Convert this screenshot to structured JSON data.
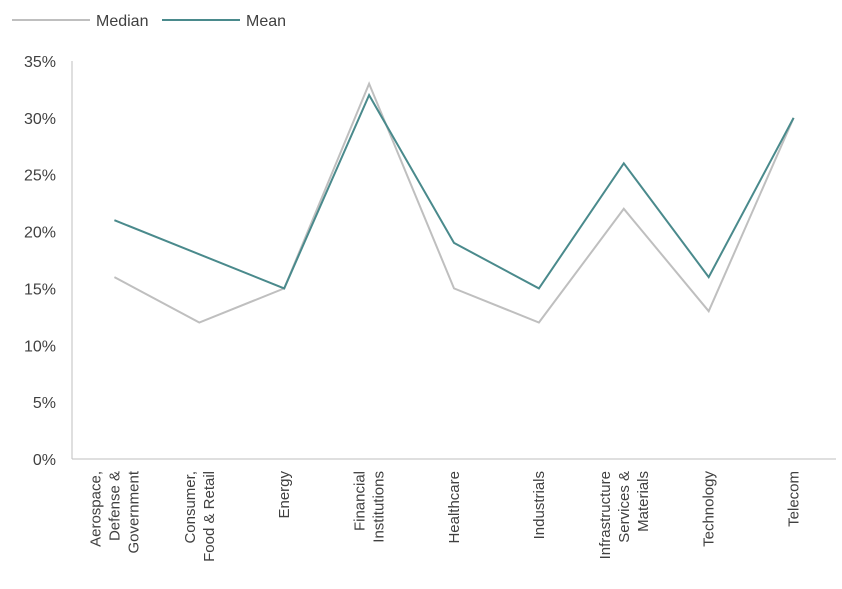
{
  "chart_data": {
    "type": "line",
    "categories": [
      [
        "Aerospace,",
        "Defense &",
        "Government"
      ],
      [
        "Consumer,",
        "Food & Retail"
      ],
      [
        "Energy"
      ],
      [
        "Financial",
        "Institutions"
      ],
      [
        "Healthcare"
      ],
      [
        "Industrials"
      ],
      [
        "Infrastructure",
        "Services &",
        "Materials"
      ],
      [
        "Technology"
      ],
      [
        "Telecom"
      ]
    ],
    "series": [
      {
        "name": "Median",
        "color": "#BFBFBF",
        "values": [
          16,
          12,
          15,
          33,
          15,
          12,
          22,
          13,
          30
        ]
      },
      {
        "name": "Mean",
        "color": "#4A8A8C",
        "values": [
          21,
          18,
          15,
          32,
          19,
          15,
          26,
          16,
          30
        ]
      }
    ],
    "ylim": [
      0,
      35
    ],
    "yticks": [
      "0%",
      "5%",
      "10%",
      "15%",
      "20%",
      "25%",
      "30%",
      "35%"
    ],
    "legend_position": "top-left",
    "grid": false,
    "title": "",
    "xlabel": "",
    "ylabel": ""
  }
}
